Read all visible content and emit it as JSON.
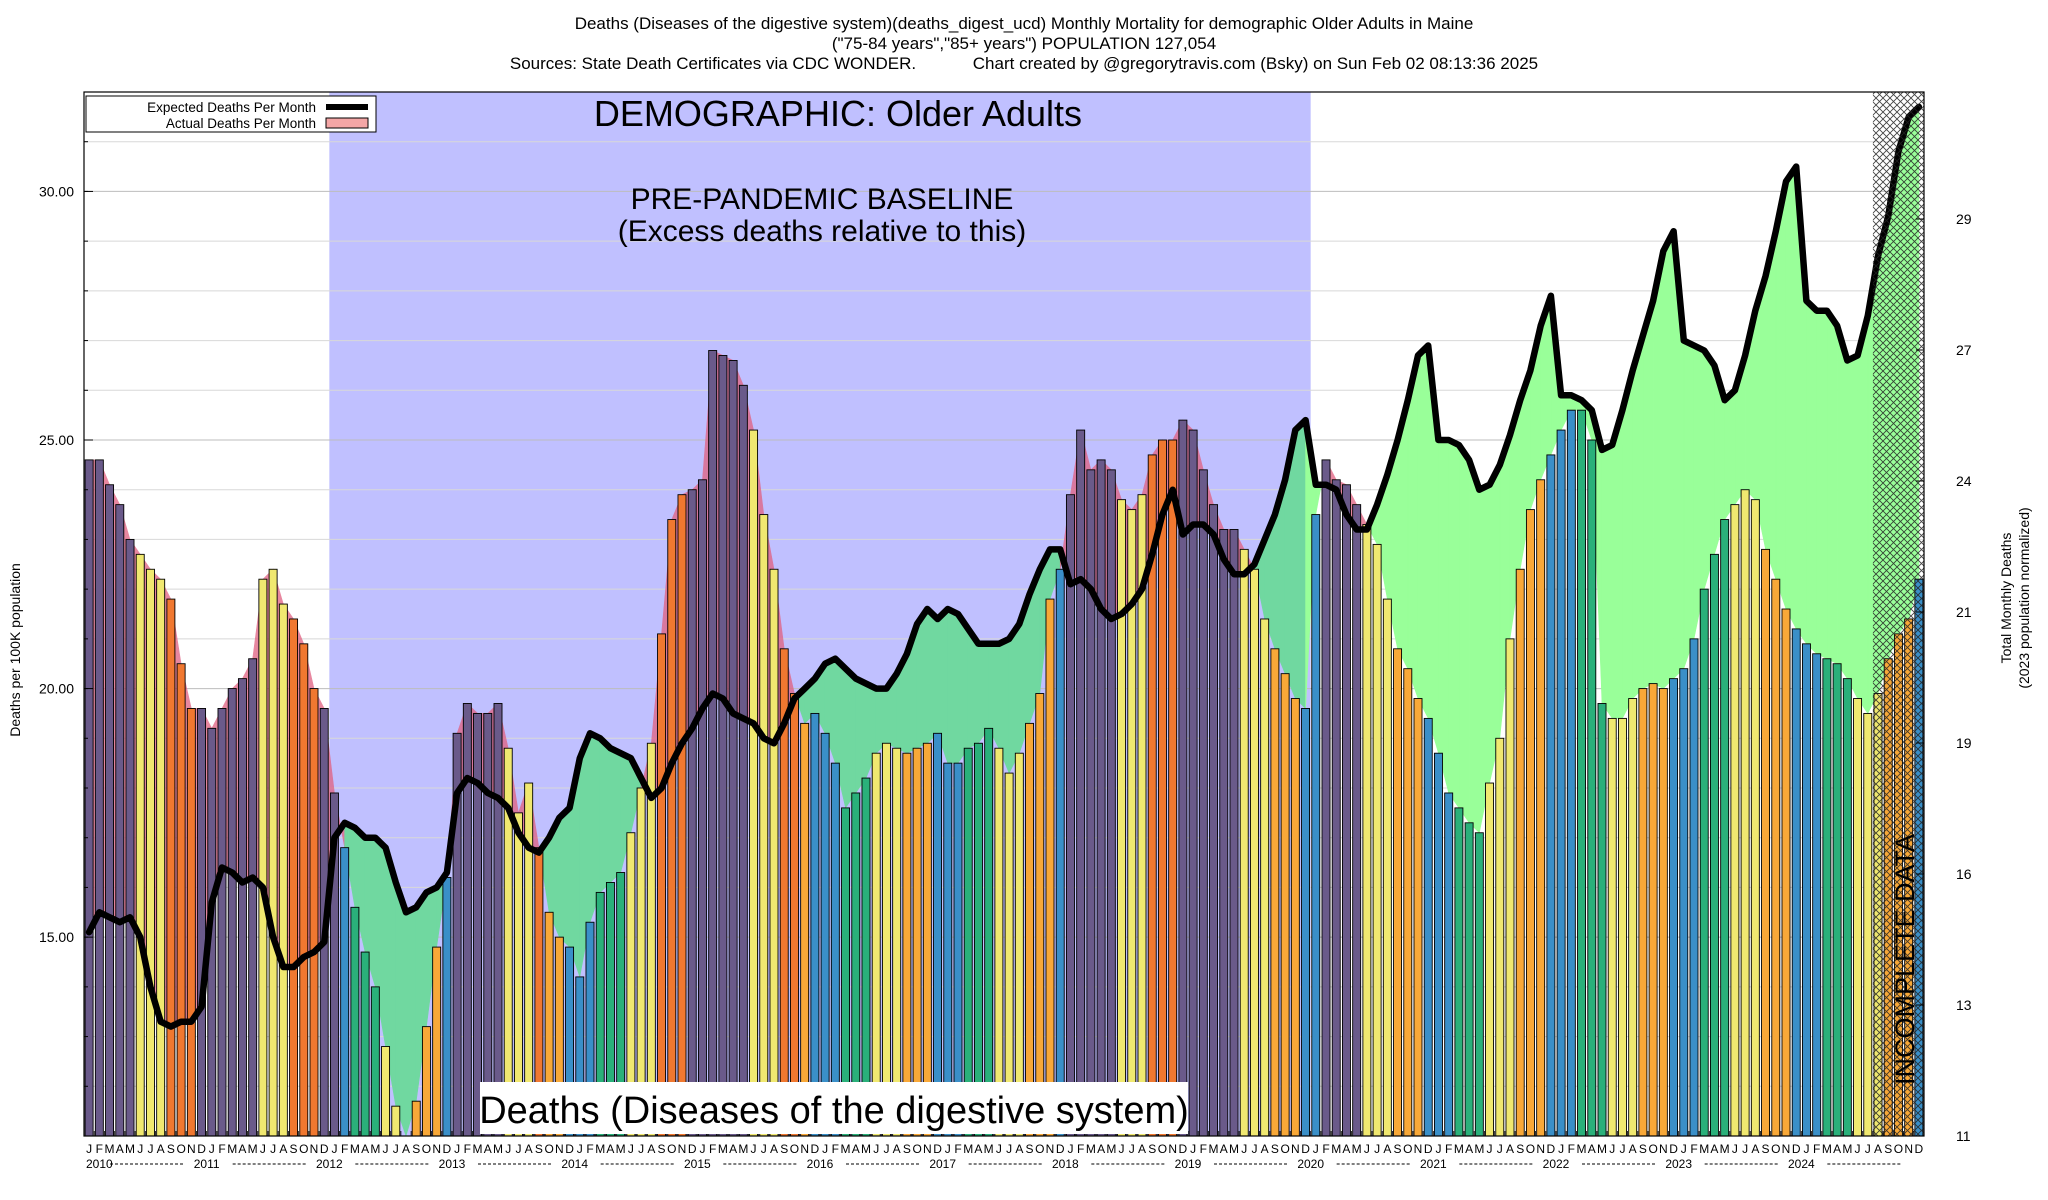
{
  "header": {
    "line1": "Deaths (Diseases of the digestive system)(deaths_digest_ucd) Monthly Mortality for demographic Older Adults in Maine",
    "line2": "(\"75-84 years\",\"85+ years\") POPULATION 127,054",
    "line3": "Sources: State Death Certificates via CDC WONDER.            Chart created by @gregorytravis.com (Bsky) on Sun Feb 02 08:13:36 2025"
  },
  "chart_data": {
    "type": "bar",
    "ylabel": "Deaths per 100K population",
    "y2label": "Total Monthly Deaths",
    "y2label_sub": "(2023 population normalized)",
    "ylim": [
      11,
      32
    ],
    "yticks": [
      15,
      20,
      25,
      30
    ],
    "ytick_labels": [
      "15.00",
      "20.00",
      "25.00",
      "30.00"
    ],
    "y2ticks": [
      11,
      13,
      16,
      19,
      21,
      24,
      27,
      29
    ],
    "month_letters": [
      "J",
      "F",
      "M",
      "A",
      "M",
      "J",
      "J",
      "A",
      "S",
      "O",
      "N",
      "D"
    ],
    "years": [
      "2010",
      "2011",
      "2012",
      "2013",
      "2014",
      "2015",
      "2016",
      "2017",
      "2018",
      "2019",
      "2020",
      "2021",
      "2022",
      "2023",
      "2024"
    ],
    "annotations": {
      "demographic": "DEMOGRAPHIC: Older Adults",
      "baseline_line1": "PRE-PANDEMIC BASELINE",
      "baseline_line2": "(Excess deaths relative to this)",
      "cause": "Deaths (Diseases of the digestive system)",
      "incomplete": "INCOMPLETE DATA"
    },
    "baseline_period": [
      "2012-01",
      "2019-12"
    ],
    "incomplete_from": "2024-08",
    "legend": {
      "position": "top-left",
      "items": [
        {
          "label": "Expected Deaths Per Month",
          "color": "#000000"
        },
        {
          "label": "Actual Deaths Per Month",
          "color": "#f4a6a6"
        }
      ]
    },
    "colors": {
      "baseline_band": "#c0c0ff",
      "excess_fill": "#99ff99",
      "baseline_excess_fill": "#70d8a0",
      "deficit_fill": "#e06080",
      "winter": "#3a8fc8",
      "spring": "#2ab07a",
      "summer": "#f0e870",
      "fall": "#f8a838",
      "winter_dark": "#6a5a8a",
      "fall_dark": "#f07830"
    },
    "series": [
      {
        "name": "Actual Deaths Per Month",
        "values": [
          24.6,
          24.6,
          24.1,
          23.7,
          23.0,
          22.7,
          22.4,
          22.2,
          21.8,
          20.5,
          19.6,
          19.6,
          19.2,
          19.6,
          20.0,
          20.2,
          20.6,
          22.2,
          22.4,
          21.7,
          21.4,
          20.9,
          20.0,
          19.6,
          17.9,
          16.8,
          15.6,
          14.7,
          14.0,
          12.8,
          11.6,
          11.0,
          11.7,
          13.2,
          14.8,
          16.2,
          19.1,
          19.7,
          19.5,
          19.5,
          19.7,
          18.8,
          17.5,
          18.1,
          16.8,
          15.5,
          15.0,
          14.8,
          14.2,
          15.3,
          15.9,
          16.1,
          16.3,
          17.1,
          18.0,
          18.9,
          21.1,
          23.4,
          23.9,
          24.0,
          24.2,
          26.8,
          26.7,
          26.6,
          26.1,
          25.2,
          23.5,
          22.4,
          20.8,
          19.9,
          19.3,
          19.5,
          19.1,
          18.5,
          17.6,
          17.9,
          18.2,
          18.7,
          18.9,
          18.8,
          18.7,
          18.8,
          18.9,
          19.1,
          18.5,
          18.5,
          18.8,
          18.9,
          19.2,
          18.8,
          18.3,
          18.7,
          19.3,
          19.9,
          21.8,
          22.4,
          23.9,
          25.2,
          24.4,
          24.6,
          24.4,
          23.8,
          23.6,
          23.9,
          24.7,
          25.0,
          25.0,
          25.4,
          25.2,
          24.4,
          23.7,
          23.2,
          23.2,
          22.8,
          22.4,
          21.4,
          20.8,
          20.3,
          19.8,
          19.6,
          23.5,
          24.6,
          24.2,
          24.1,
          23.7,
          23.3,
          22.9,
          21.8,
          20.8,
          20.4,
          19.8,
          19.4,
          18.7,
          17.9,
          17.6,
          17.3,
          17.1,
          18.1,
          19.0,
          21.0,
          22.4,
          23.6,
          24.2,
          24.7,
          25.2,
          25.6,
          25.6,
          25.0,
          19.7,
          19.4,
          19.4,
          19.8,
          20.0,
          20.1,
          20.0,
          20.2,
          20.4,
          21.0,
          22.0,
          22.7,
          23.4,
          23.7,
          24.0,
          23.8,
          22.8,
          22.2,
          21.6,
          21.2,
          20.9,
          20.7,
          20.6,
          20.5,
          20.2,
          19.8,
          19.5,
          19.9,
          20.6,
          21.1,
          21.4,
          22.2
        ]
      },
      {
        "name": "Expected Deaths Per Month",
        "values": [
          15.1,
          15.5,
          15.4,
          15.3,
          15.4,
          15.0,
          14.0,
          13.3,
          13.2,
          13.3,
          13.3,
          13.6,
          15.7,
          16.4,
          16.3,
          16.1,
          16.2,
          16.0,
          15.0,
          14.4,
          14.4,
          14.6,
          14.7,
          14.9,
          17.0,
          17.3,
          17.2,
          17.0,
          17.0,
          16.8,
          16.1,
          15.5,
          15.6,
          15.9,
          16.0,
          16.3,
          17.9,
          18.2,
          18.1,
          17.9,
          17.8,
          17.6,
          17.1,
          16.8,
          16.7,
          17.0,
          17.4,
          17.6,
          18.6,
          19.1,
          19.0,
          18.8,
          18.7,
          18.6,
          18.2,
          17.8,
          18.0,
          18.5,
          18.9,
          19.2,
          19.6,
          19.9,
          19.8,
          19.5,
          19.4,
          19.3,
          19.0,
          18.9,
          19.3,
          19.8,
          20.0,
          20.2,
          20.5,
          20.6,
          20.4,
          20.2,
          20.1,
          20.0,
          20.0,
          20.3,
          20.7,
          21.3,
          21.6,
          21.4,
          21.6,
          21.5,
          21.2,
          20.9,
          20.9,
          20.9,
          21.0,
          21.3,
          21.9,
          22.4,
          22.8,
          22.8,
          22.1,
          22.2,
          22.0,
          21.6,
          21.4,
          21.5,
          21.7,
          22.0,
          22.7,
          23.5,
          24.0,
          23.1,
          23.3,
          23.3,
          23.1,
          22.6,
          22.3,
          22.3,
          22.5,
          23.0,
          23.5,
          24.2,
          25.2,
          25.4,
          24.1,
          24.1,
          24.0,
          23.5,
          23.2,
          23.2,
          23.7,
          24.3,
          25.0,
          25.8,
          26.7,
          26.9,
          25.0,
          25.0,
          24.9,
          24.6,
          24.0,
          24.1,
          24.5,
          25.1,
          25.8,
          26.4,
          27.3,
          27.9,
          25.9,
          25.9,
          25.8,
          25.6,
          24.8,
          24.9,
          25.6,
          26.4,
          27.1,
          27.8,
          28.8,
          29.2,
          27.0,
          26.9,
          26.8,
          26.5,
          25.8,
          26.0,
          26.7,
          27.6,
          28.3,
          29.2,
          30.2,
          30.5,
          27.8,
          27.6,
          27.6,
          27.3,
          26.6,
          26.7,
          27.5,
          28.7,
          29.5,
          30.8,
          31.5,
          31.7
        ]
      }
    ]
  }
}
